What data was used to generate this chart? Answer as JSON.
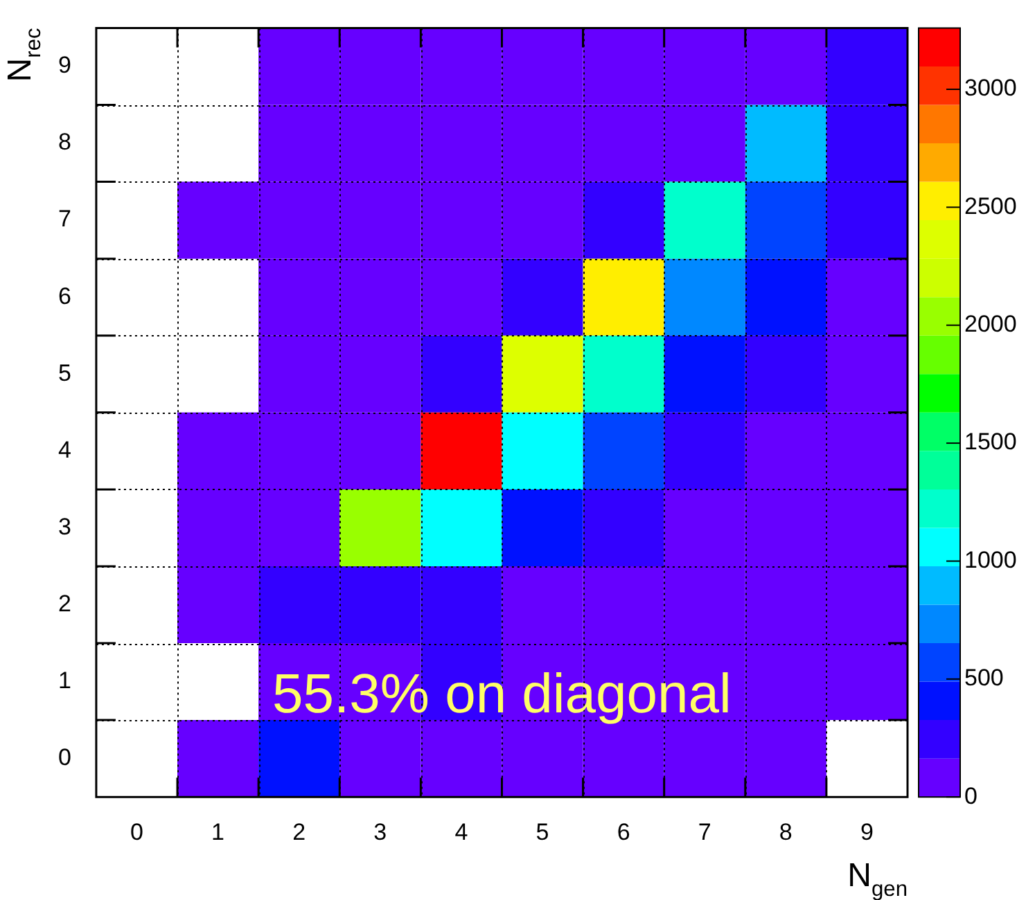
{
  "chart_data": {
    "type": "heatmap",
    "xlabel": "N$_{gen}$",
    "ylabel": "N$_{rec}$",
    "categories": [
      "0",
      "1",
      "2",
      "3",
      "4",
      "5",
      "6",
      "7",
      "8",
      "9"
    ],
    "y_categories": [
      "9",
      "8",
      "7",
      "6",
      "5",
      "4",
      "3",
      "2",
      "1",
      "0"
    ],
    "cells": [
      [
        null,
        null,
        80,
        80,
        80,
        80,
        80,
        80,
        80,
        250
      ],
      [
        null,
        null,
        80,
        80,
        80,
        80,
        80,
        80,
        900,
        250
      ],
      [
        null,
        80,
        80,
        80,
        80,
        80,
        250,
        1220,
        570,
        250
      ],
      [
        null,
        null,
        80,
        80,
        80,
        250,
        2500,
        730,
        400,
        80
      ],
      [
        null,
        null,
        80,
        80,
        250,
        2350,
        1220,
        400,
        250,
        80
      ],
      [
        null,
        80,
        80,
        80,
        3200,
        1060,
        570,
        250,
        80,
        80
      ],
      [
        null,
        80,
        80,
        2050,
        1060,
        400,
        250,
        80,
        80,
        80
      ],
      [
        null,
        80,
        250,
        250,
        250,
        80,
        80,
        80,
        80,
        80
      ],
      [
        null,
        null,
        80,
        80,
        250,
        80,
        80,
        80,
        80,
        80
      ],
      [
        null,
        80,
        400,
        80,
        80,
        80,
        80,
        80,
        80,
        null
      ]
    ],
    "clim": [
      0,
      3260
    ],
    "cticks": [
      0,
      500,
      1000,
      1500,
      2000,
      2500,
      3000
    ],
    "grid": true,
    "annotations": [
      "55.3% on diagonal"
    ]
  }
}
